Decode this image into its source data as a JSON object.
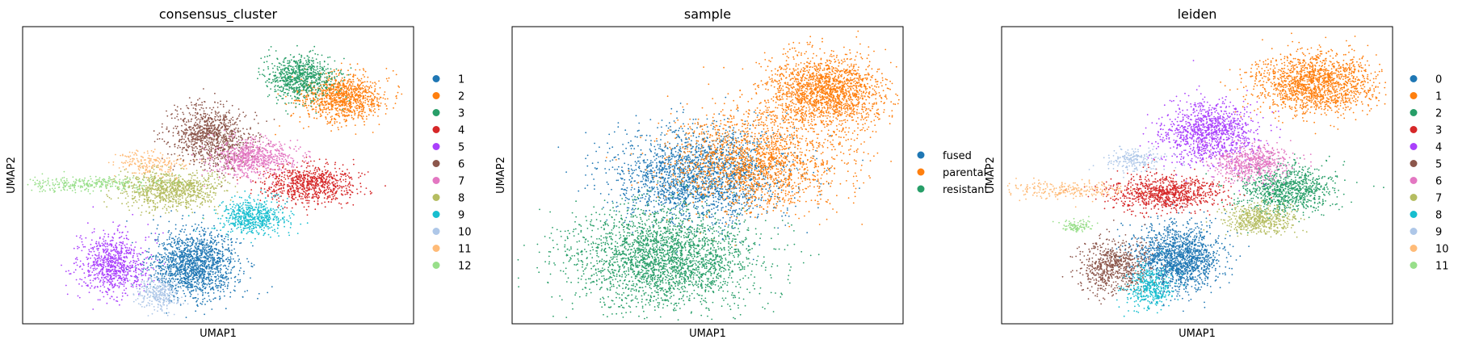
{
  "chart_data": [
    {
      "type": "scatter",
      "title": "consensus_cluster",
      "xlabel": "UMAP1",
      "ylabel": "UMAP2",
      "xticks": false,
      "yticks": false,
      "legend_position": "right",
      "categories": [
        "1",
        "2",
        "3",
        "4",
        "5",
        "6",
        "7",
        "8",
        "9",
        "10",
        "11",
        "12"
      ],
      "colors": [
        "#1f77b4",
        "#ff7f0e",
        "#279e68",
        "#d62728",
        "#aa40fc",
        "#8c564b",
        "#e377c2",
        "#b5bd61",
        "#17becf",
        "#aec7e8",
        "#ffbb78",
        "#98df8a"
      ],
      "clusters": [
        {
          "label": "1",
          "x": 4.4,
          "y": 2.0,
          "sx": 0.55,
          "sy": 0.55,
          "n": 1500
        },
        {
          "label": "2",
          "x": 8.2,
          "y": 7.6,
          "sx": 0.55,
          "sy": 0.4,
          "n": 1000
        },
        {
          "label": "3",
          "x": 7.1,
          "y": 8.3,
          "sx": 0.45,
          "sy": 0.35,
          "n": 800
        },
        {
          "label": "4",
          "x": 7.3,
          "y": 4.7,
          "sx": 0.6,
          "sy": 0.32,
          "n": 800
        },
        {
          "label": "5",
          "x": 2.3,
          "y": 2.0,
          "sx": 0.45,
          "sy": 0.5,
          "n": 800
        },
        {
          "label": "6",
          "x": 4.8,
          "y": 6.3,
          "sx": 0.5,
          "sy": 0.5,
          "n": 1000
        },
        {
          "label": "7",
          "x": 5.9,
          "y": 5.6,
          "sx": 0.5,
          "sy": 0.3,
          "n": 700
        },
        {
          "label": "8",
          "x": 3.8,
          "y": 4.5,
          "sx": 0.65,
          "sy": 0.32,
          "n": 900
        },
        {
          "label": "9",
          "x": 5.9,
          "y": 3.6,
          "sx": 0.45,
          "sy": 0.3,
          "n": 600
        },
        {
          "label": "10",
          "x": 3.5,
          "y": 1.0,
          "sx": 0.3,
          "sy": 0.3,
          "n": 300
        },
        {
          "label": "11",
          "x": 3.3,
          "y": 5.4,
          "sx": 0.45,
          "sy": 0.2,
          "n": 200
        },
        {
          "label": "12",
          "x": 1.6,
          "y": 4.7,
          "sx": 0.9,
          "sy": 0.12,
          "n": 300
        }
      ],
      "xlim": [
        0,
        10
      ],
      "ylim": [
        0,
        10
      ]
    },
    {
      "type": "scatter",
      "title": "sample",
      "xlabel": "UMAP1",
      "ylabel": "UMAP2",
      "xticks": false,
      "yticks": false,
      "legend_position": "right",
      "categories": [
        "fused",
        "parental",
        "resistant"
      ],
      "colors": [
        "#1f77b4",
        "#ff7f0e",
        "#279e68"
      ],
      "clusters": [
        {
          "label": "fused",
          "x": 4.8,
          "y": 5.0,
          "sx": 1.1,
          "sy": 0.8,
          "n": 2200
        },
        {
          "label": "parental",
          "x": 8.0,
          "y": 7.8,
          "sx": 0.75,
          "sy": 0.6,
          "n": 1800
        },
        {
          "label": "parental",
          "x": 6.3,
          "y": 5.5,
          "sx": 1.1,
          "sy": 0.85,
          "n": 1800
        },
        {
          "label": "resistant",
          "x": 3.9,
          "y": 2.2,
          "sx": 1.15,
          "sy": 0.8,
          "n": 2600
        }
      ],
      "xlim": [
        0,
        10
      ],
      "ylim": [
        0,
        10
      ]
    },
    {
      "type": "scatter",
      "title": "leiden",
      "xlabel": "UMAP1",
      "ylabel": "UMAP2",
      "xticks": false,
      "yticks": false,
      "legend_position": "right",
      "categories": [
        "0",
        "1",
        "2",
        "3",
        "4",
        "5",
        "6",
        "7",
        "8",
        "9",
        "10",
        "11"
      ],
      "colors": [
        "#1f77b4",
        "#ff7f0e",
        "#279e68",
        "#d62728",
        "#aa40fc",
        "#8c564b",
        "#e377c2",
        "#b5bd61",
        "#17becf",
        "#aec7e8",
        "#ffbb78",
        "#98df8a"
      ],
      "clusters": [
        {
          "label": "0",
          "x": 4.5,
          "y": 2.2,
          "sx": 0.55,
          "sy": 0.55,
          "n": 1500
        },
        {
          "label": "1",
          "x": 8.0,
          "y": 8.1,
          "sx": 0.8,
          "sy": 0.5,
          "n": 1600
        },
        {
          "label": "2",
          "x": 7.3,
          "y": 4.5,
          "sx": 0.6,
          "sy": 0.4,
          "n": 900
        },
        {
          "label": "3",
          "x": 4.2,
          "y": 4.4,
          "sx": 0.7,
          "sy": 0.3,
          "n": 900
        },
        {
          "label": "4",
          "x": 5.3,
          "y": 6.4,
          "sx": 0.6,
          "sy": 0.55,
          "n": 1100
        },
        {
          "label": "5",
          "x": 2.9,
          "y": 1.9,
          "sx": 0.45,
          "sy": 0.45,
          "n": 700
        },
        {
          "label": "6",
          "x": 6.4,
          "y": 5.4,
          "sx": 0.5,
          "sy": 0.3,
          "n": 600
        },
        {
          "label": "7",
          "x": 6.6,
          "y": 3.5,
          "sx": 0.45,
          "sy": 0.25,
          "n": 500
        },
        {
          "label": "8",
          "x": 3.8,
          "y": 1.2,
          "sx": 0.3,
          "sy": 0.35,
          "n": 400
        },
        {
          "label": "9",
          "x": 3.4,
          "y": 5.5,
          "sx": 0.35,
          "sy": 0.2,
          "n": 200
        },
        {
          "label": "10",
          "x": 1.6,
          "y": 4.5,
          "sx": 0.8,
          "sy": 0.15,
          "n": 250
        },
        {
          "label": "11",
          "x": 1.9,
          "y": 3.3,
          "sx": 0.2,
          "sy": 0.1,
          "n": 100
        }
      ],
      "xlim": [
        0,
        10
      ],
      "ylim": [
        0,
        10
      ]
    }
  ]
}
